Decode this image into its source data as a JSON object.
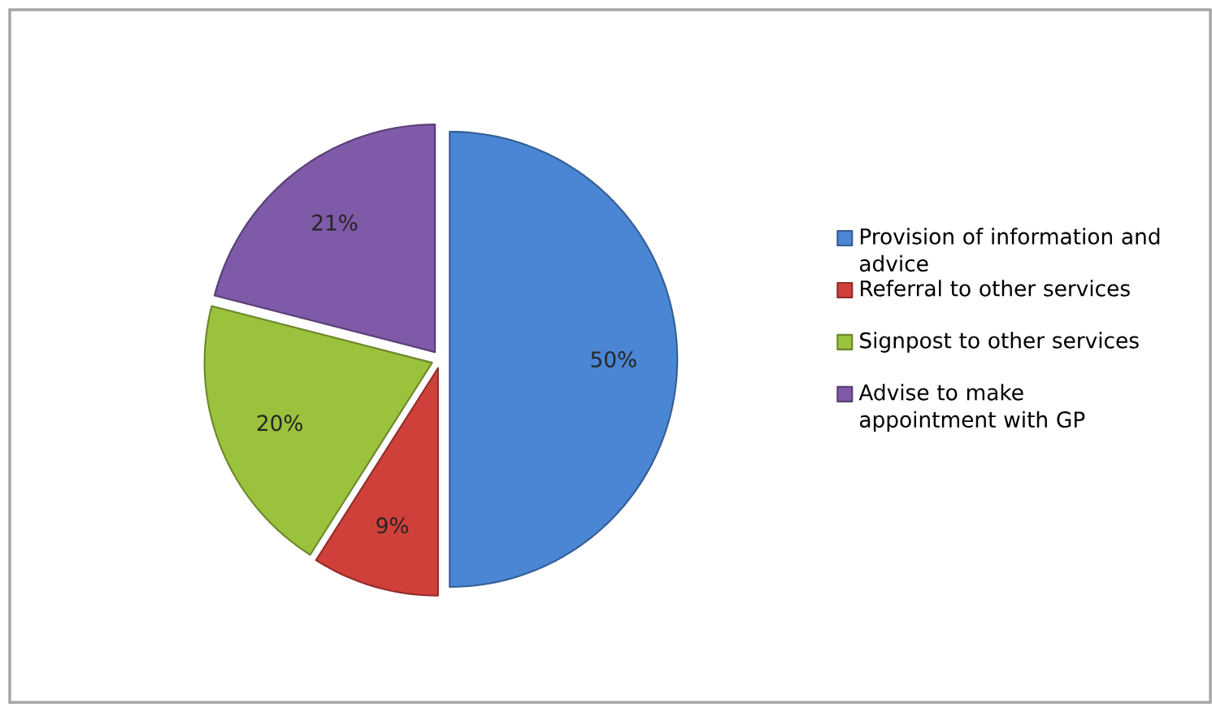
{
  "chart_data": {
    "type": "pie",
    "categories": [
      "Provision of information and advice",
      "Referral to other services",
      "Signpost to other services",
      "Advise to make appointment with GP"
    ],
    "values": [
      50,
      9,
      20,
      21
    ],
    "value_labels": [
      "50%",
      "9%",
      "20%",
      "21%"
    ],
    "colors": [
      "#4a86d4",
      "#d0403a",
      "#9bc23c",
      "#7f5aa8"
    ],
    "legend": "right"
  }
}
